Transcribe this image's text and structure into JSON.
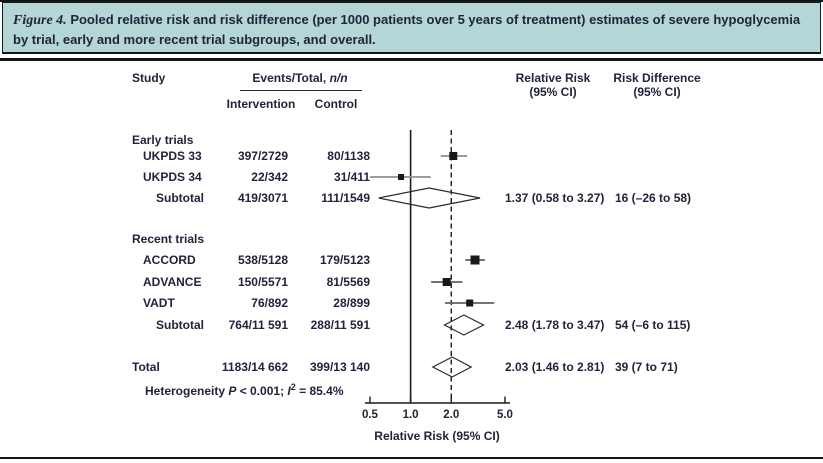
{
  "header": {
    "label": "Figure 4.",
    "caption": "Pooled relative risk and risk difference (per 1000 patients over 5 years of treatment) estimates of severe hypoglycemia by trial, early and more recent trial subgroups, and overall."
  },
  "table_headers": {
    "study": "Study",
    "events_total_prefix": "Events/Total, ",
    "events_total_n": "n/n",
    "intervention": "Intervention",
    "control": "Control",
    "relative_risk_line1": "Relative Risk",
    "relative_risk_line2": "(95% CI)",
    "risk_difference_line1": "Risk Difference",
    "risk_difference_line2": "(95% CI)"
  },
  "footer": {
    "het_prefix": "Heterogeneity ",
    "het_p": "P",
    "het_mid": " < 0.001; ",
    "het_i": "I",
    "het_sup": "2",
    "het_suffix": " = 85.4%"
  },
  "chart_data": {
    "type": "forest",
    "axis": {
      "scale": "log",
      "ticks": [
        0.5,
        1.0,
        2.0,
        5.0
      ],
      "tick_labels": [
        "0.5",
        "1.0",
        "2.0",
        "5.0"
      ],
      "label": "Relative Risk (95% CI)",
      "ref_line_solid": 1.0,
      "ref_line_dashed": 2.0,
      "range": [
        0.5,
        5.0
      ]
    },
    "rows": [
      {
        "type": "group",
        "label": "Early trials"
      },
      {
        "type": "study",
        "label": "UKPDS 33",
        "intervention": "397/2729",
        "control": "80/1138",
        "rr": 2.07,
        "ci": [
          1.67,
          2.62
        ],
        "size": 8
      },
      {
        "type": "study",
        "label": "UKPDS 34",
        "intervention": "22/342",
        "control": "31/411",
        "rr": 0.85,
        "ci": [
          0.5,
          1.41
        ],
        "size": 6
      },
      {
        "type": "subtotal",
        "label": "Subtotal",
        "intervention": "419/3071",
        "control": "111/1549",
        "rr": 1.37,
        "ci": [
          0.58,
          3.27
        ],
        "rr_text": "1.37 (0.58 to 3.27)",
        "rd_text": "16 (–26 to 58)"
      },
      {
        "type": "group",
        "label": "Recent trials"
      },
      {
        "type": "study",
        "label": "ACCORD",
        "intervention": "538/5128",
        "control": "179/5123",
        "rr": 3.0,
        "ci": [
          2.54,
          3.55
        ],
        "size": 9
      },
      {
        "type": "study",
        "label": "ADVANCE",
        "intervention": "150/5571",
        "control": "81/5569",
        "rr": 1.85,
        "ci": [
          1.42,
          2.42
        ],
        "size": 8
      },
      {
        "type": "study",
        "label": "VADT",
        "intervention": "76/892",
        "control": "28/899",
        "rr": 2.74,
        "ci": [
          1.8,
          4.16
        ],
        "size": 7
      },
      {
        "type": "subtotal",
        "label": "Subtotal",
        "intervention": "764/11 591",
        "control": "288/11 591",
        "rr": 2.48,
        "ci": [
          1.78,
          3.47
        ],
        "rr_text": "2.48 (1.78 to 3.47)",
        "rd_text": "54 (–6 to 115)"
      },
      {
        "type": "total",
        "label": "Total",
        "intervention": "1183/14 662",
        "control": "399/13 140",
        "rr": 2.03,
        "ci": [
          1.46,
          2.81
        ],
        "rr_text": "2.03 (1.46 to 2.81)",
        "rd_text": "39 (7 to 71)"
      }
    ]
  }
}
